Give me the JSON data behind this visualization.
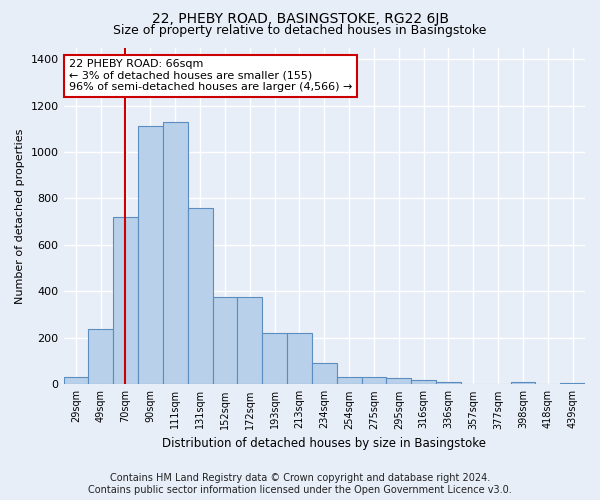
{
  "title": "22, PHEBY ROAD, BASINGSTOKE, RG22 6JB",
  "subtitle": "Size of property relative to detached houses in Basingstoke",
  "xlabel": "Distribution of detached houses by size in Basingstoke",
  "ylabel": "Number of detached properties",
  "categories": [
    "29sqm",
    "49sqm",
    "70sqm",
    "90sqm",
    "111sqm",
    "131sqm",
    "152sqm",
    "172sqm",
    "193sqm",
    "213sqm",
    "234sqm",
    "254sqm",
    "275sqm",
    "295sqm",
    "316sqm",
    "336sqm",
    "357sqm",
    "377sqm",
    "398sqm",
    "418sqm",
    "439sqm"
  ],
  "values": [
    30,
    240,
    720,
    1110,
    1130,
    760,
    375,
    375,
    220,
    220,
    90,
    30,
    30,
    25,
    20,
    10,
    0,
    0,
    10,
    0,
    5
  ],
  "bar_color": "#b8d0ea",
  "bar_edge_color": "#5b8dc0",
  "vline_color": "#cc0000",
  "vline_pos": 1.97,
  "annotation_text": "22 PHEBY ROAD: 66sqm\n← 3% of detached houses are smaller (155)\n96% of semi-detached houses are larger (4,566) →",
  "annotation_box_color": "#cc0000",
  "ylim": [
    0,
    1450
  ],
  "yticks": [
    0,
    200,
    400,
    600,
    800,
    1000,
    1200,
    1400
  ],
  "footer_line1": "Contains HM Land Registry data © Crown copyright and database right 2024.",
  "footer_line2": "Contains public sector information licensed under the Open Government Licence v3.0.",
  "bg_color": "#e8eef8",
  "plot_bg_color": "#e8eef8",
  "grid_color": "#ffffff",
  "title_fontsize": 10,
  "subtitle_fontsize": 9,
  "footer_fontsize": 7
}
